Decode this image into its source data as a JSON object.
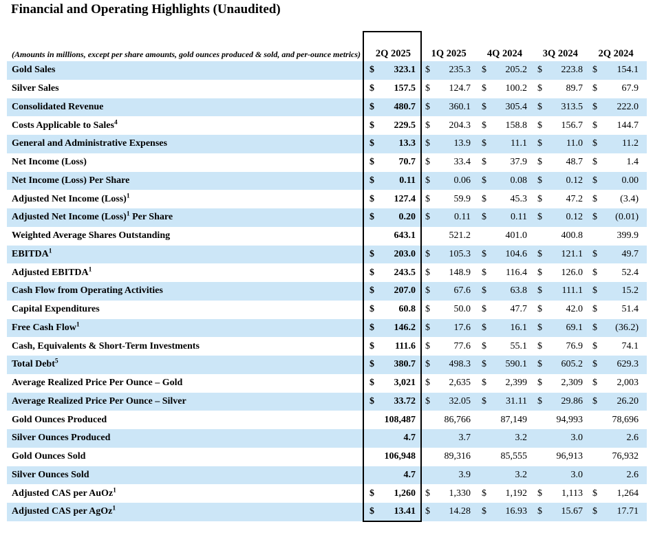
{
  "title": "Financial and Operating Highlights (Unaudited)",
  "table": {
    "note": "(Amounts in millions, except per share amounts, gold ounces produced & sold, and per-ounce metrics)",
    "columns": [
      "2Q 2025",
      "1Q 2025",
      "4Q 2024",
      "3Q 2024",
      "2Q 2024"
    ],
    "highlighted_column": "2Q 2025",
    "colors": {
      "row_alt": "#cce6f7",
      "box_border": "#000000",
      "text": "#000000",
      "background": "#ffffff"
    },
    "rows": [
      {
        "label": "Gold Sales",
        "sup": "",
        "label_post": "",
        "currency": "$",
        "values": [
          "323.1",
          "235.3",
          "205.2",
          "223.8",
          "154.1"
        ]
      },
      {
        "label": "Silver Sales",
        "sup": "",
        "label_post": "",
        "currency": "$",
        "values": [
          "157.5",
          "124.7",
          "100.2",
          "89.7",
          "67.9"
        ]
      },
      {
        "label": "Consolidated Revenue",
        "sup": "",
        "label_post": "",
        "currency": "$",
        "values": [
          "480.7",
          "360.1",
          "305.4",
          "313.5",
          "222.0"
        ]
      },
      {
        "label": "Costs Applicable to Sales",
        "sup": "4",
        "label_post": "",
        "currency": "$",
        "values": [
          "229.5",
          "204.3",
          "158.8",
          "156.7",
          "144.7"
        ]
      },
      {
        "label": "General and Administrative Expenses",
        "sup": "",
        "label_post": "",
        "currency": "$",
        "values": [
          "13.3",
          "13.9",
          "11.1",
          "11.0",
          "11.2"
        ]
      },
      {
        "label": "Net Income (Loss)",
        "sup": "",
        "label_post": "",
        "currency": "$",
        "values": [
          "70.7",
          "33.4",
          "37.9",
          "48.7",
          "1.4"
        ]
      },
      {
        "label": "Net Income (Loss) Per Share",
        "sup": "",
        "label_post": "",
        "currency": "$",
        "values": [
          "0.11",
          "0.06",
          "0.08",
          "0.12",
          "0.00"
        ]
      },
      {
        "label": "Adjusted Net Income (Loss)",
        "sup": "1",
        "label_post": "",
        "currency": "$",
        "values": [
          "127.4",
          "59.9",
          "45.3",
          "47.2",
          "(3.4)"
        ]
      },
      {
        "label": "Adjusted Net Income (Loss)",
        "sup": "1",
        "label_post": " Per Share",
        "currency": "$",
        "values": [
          "0.20",
          "0.11",
          "0.11",
          "0.12",
          "(0.01)"
        ]
      },
      {
        "label": "Weighted Average Shares Outstanding",
        "sup": "",
        "label_post": "",
        "currency": "",
        "values": [
          "643.1",
          "521.2",
          "401.0",
          "400.8",
          "399.9"
        ]
      },
      {
        "label": "EBITDA",
        "sup": "1",
        "label_post": "",
        "currency": "$",
        "values": [
          "203.0",
          "105.3",
          "104.6",
          "121.1",
          "49.7"
        ]
      },
      {
        "label": "Adjusted EBITDA",
        "sup": "1",
        "label_post": "",
        "currency": "$",
        "values": [
          "243.5",
          "148.9",
          "116.4",
          "126.0",
          "52.4"
        ]
      },
      {
        "label": "Cash Flow from Operating Activities",
        "sup": "",
        "label_post": "",
        "currency": "$",
        "values": [
          "207.0",
          "67.6",
          "63.8",
          "111.1",
          "15.2"
        ]
      },
      {
        "label": "Capital Expenditures",
        "sup": "",
        "label_post": "",
        "currency": "$",
        "values": [
          "60.8",
          "50.0",
          "47.7",
          "42.0",
          "51.4"
        ]
      },
      {
        "label": "Free Cash Flow",
        "sup": "1",
        "label_post": "",
        "currency": "$",
        "values": [
          "146.2",
          "17.6",
          "16.1",
          "69.1",
          "(36.2)"
        ]
      },
      {
        "label": "Cash, Equivalents & Short-Term Investments",
        "sup": "",
        "label_post": "",
        "currency": "$",
        "values": [
          "111.6",
          "77.6",
          "55.1",
          "76.9",
          "74.1"
        ]
      },
      {
        "label": "Total Debt",
        "sup": "5",
        "label_post": "",
        "currency": "$",
        "values": [
          "380.7",
          "498.3",
          "590.1",
          "605.2",
          "629.3"
        ]
      },
      {
        "label": "Average Realized Price Per Ounce – Gold",
        "sup": "",
        "label_post": "",
        "currency": "$",
        "values": [
          "3,021",
          "2,635",
          "2,399",
          "2,309",
          "2,003"
        ]
      },
      {
        "label": "Average Realized Price Per Ounce – Silver",
        "sup": "",
        "label_post": "",
        "currency": "$",
        "values": [
          "33.72",
          "32.05",
          "31.11",
          "29.86",
          "26.20"
        ]
      },
      {
        "label": "Gold Ounces Produced",
        "sup": "",
        "label_post": "",
        "currency": "",
        "values": [
          "108,487",
          "86,766",
          "87,149",
          "94,993",
          "78,696"
        ]
      },
      {
        "label": "Silver Ounces Produced",
        "sup": "",
        "label_post": "",
        "currency": "",
        "values": [
          "4.7",
          "3.7",
          "3.2",
          "3.0",
          "2.6"
        ]
      },
      {
        "label": "Gold Ounces Sold",
        "sup": "",
        "label_post": "",
        "currency": "",
        "values": [
          "106,948",
          "89,316",
          "85,555",
          "96,913",
          "76,932"
        ]
      },
      {
        "label": "Silver Ounces Sold",
        "sup": "",
        "label_post": "",
        "currency": "",
        "values": [
          "4.7",
          "3.9",
          "3.2",
          "3.0",
          "2.6"
        ]
      },
      {
        "label": "Adjusted CAS per AuOz",
        "sup": "1",
        "label_post": "",
        "currency": "$",
        "values": [
          "1,260",
          "1,330",
          "1,192",
          "1,113",
          "1,264"
        ]
      },
      {
        "label": "Adjusted CAS per AgOz",
        "sup": "1",
        "label_post": "",
        "currency": "$",
        "values": [
          "13.41",
          "14.28",
          "16.93",
          "15.67",
          "17.71"
        ]
      }
    ]
  }
}
